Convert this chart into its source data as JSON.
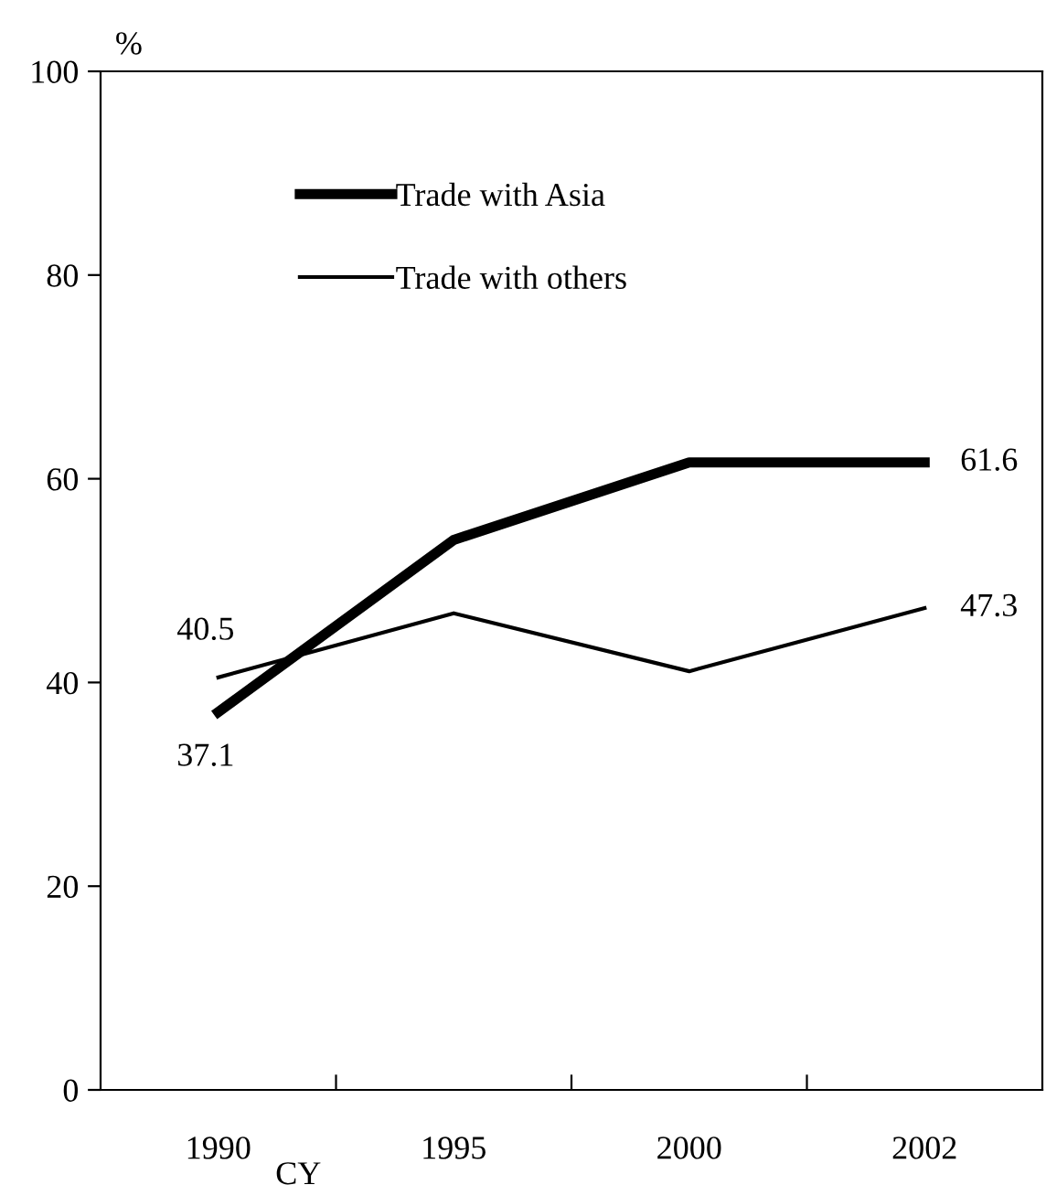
{
  "chart_data": {
    "type": "line",
    "xlabel": "CY",
    "ylabel": "%",
    "categories": [
      "1990",
      "1995",
      "2000",
      "2002"
    ],
    "series": [
      {
        "name": "Trade with Asia",
        "color": "#000000",
        "values": [
          37.1,
          54.0,
          61.6,
          61.6
        ],
        "value_labels": [
          "37.1",
          null,
          null,
          "61.6"
        ]
      },
      {
        "name": "Trade with others",
        "color": "#000000",
        "values": [
          40.5,
          46.8,
          41.1,
          47.3
        ],
        "value_labels": [
          "40.5",
          null,
          null,
          "47.3"
        ]
      }
    ],
    "ylim": [
      0,
      100
    ],
    "yticks": [
      0,
      20,
      40,
      60,
      80,
      100
    ],
    "grid": false,
    "legend": "top left",
    "marker": "none",
    "line_style": "solid"
  }
}
